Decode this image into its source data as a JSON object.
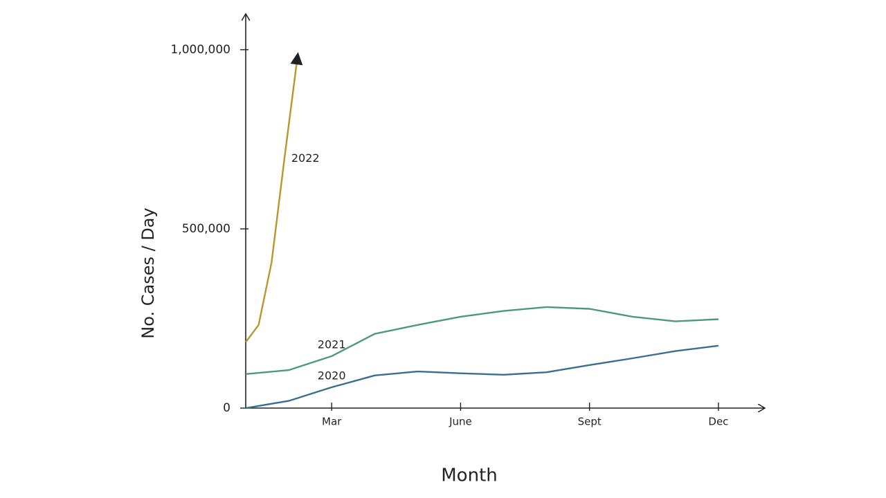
{
  "chart_data": {
    "type": "line",
    "ylabel": "No. Cases / Day",
    "xlabel": "Month",
    "xlim": [
      0,
      12
    ],
    "xticks": [
      {
        "value": 2,
        "label": "Mar"
      },
      {
        "value": 5,
        "label": "June"
      },
      {
        "value": 8,
        "label": "Sept"
      },
      {
        "value": 11,
        "label": "Dec"
      }
    ],
    "ylim": [
      0,
      1100000
    ],
    "yticks": [
      0,
      {
        "value": 500000,
        "label": "500,000"
      },
      {
        "value": 1000000,
        "label": "1,000,000"
      }
    ],
    "series": [
      {
        "name": "2022",
        "color": "#b8962e",
        "x": [
          0,
          0.3,
          0.6,
          0.9,
          1.2
        ],
        "values": [
          184000,
          232000,
          406000,
          696000,
          976000
        ]
      },
      {
        "name": "2021",
        "color": "#4a9a7a",
        "x": [
          0,
          1,
          2,
          3,
          4,
          5,
          6,
          7,
          8,
          9,
          10,
          11
        ],
        "values": [
          95000,
          106000,
          145000,
          207000,
          232000,
          255000,
          271000,
          282000,
          277000,
          255000,
          242000,
          248000
        ]
      },
      {
        "name": "2020",
        "color": "#3a6e8e",
        "x": [
          0,
          1,
          2,
          3,
          4,
          5,
          6,
          7,
          8,
          9,
          10,
          11
        ],
        "values": [
          0,
          20000,
          58000,
          91000,
          102000,
          97000,
          93000,
          100000,
          120000,
          139000,
          159000,
          174000
        ]
      }
    ]
  }
}
